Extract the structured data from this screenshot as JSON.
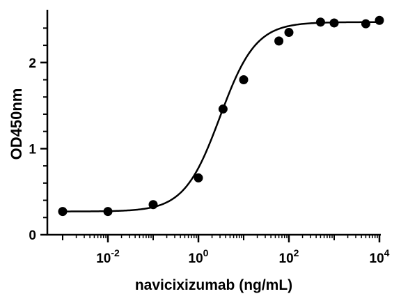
{
  "chart_data": {
    "type": "scatter",
    "title": "",
    "xlabel": "navicixizumab (ng/mL)",
    "ylabel": "OD450nm",
    "x_scale": "log10",
    "xlim": [
      0.001,
      10000
    ],
    "ylim": [
      0,
      2.5
    ],
    "x_major_ticks": [
      {
        "value": 0.01,
        "label_base": "10",
        "label_exp": "-2"
      },
      {
        "value": 1,
        "label_base": "10",
        "label_exp": "0"
      },
      {
        "value": 100,
        "label_base": "10",
        "label_exp": "2"
      },
      {
        "value": 10000,
        "label_base": "10",
        "label_exp": "4"
      }
    ],
    "y_major_ticks": [
      {
        "value": 0,
        "label": "0"
      },
      {
        "value": 1,
        "label": "1"
      },
      {
        "value": 2,
        "label": "2"
      }
    ],
    "y_minor_ticks": [
      0.2,
      0.4,
      0.6,
      0.8,
      1.2,
      1.4,
      1.6,
      1.8,
      2.2,
      2.4
    ],
    "grid": false,
    "legend": "none",
    "series": [
      {
        "points": [
          {
            "x": 0.001,
            "y": 0.27
          },
          {
            "x": 0.01,
            "y": 0.27
          },
          {
            "x": 0.1,
            "y": 0.35
          },
          {
            "x": 1,
            "y": 0.66
          },
          {
            "x": 3.5,
            "y": 1.46
          },
          {
            "x": 10,
            "y": 1.8
          },
          {
            "x": 60,
            "y": 2.25
          },
          {
            "x": 100,
            "y": 2.35
          },
          {
            "x": 500,
            "y": 2.47
          },
          {
            "x": 1000,
            "y": 2.46
          },
          {
            "x": 5000,
            "y": 2.45
          },
          {
            "x": 10000,
            "y": 2.49
          }
        ],
        "fit": {
          "model": "four-parameter-logistic",
          "bottom": 0.27,
          "top": 2.47,
          "ec50": 3.0,
          "hill_slope": 1.1
        }
      }
    ],
    "colors": {
      "marker": "#000000",
      "curve": "#000000",
      "axis": "#000000"
    }
  }
}
